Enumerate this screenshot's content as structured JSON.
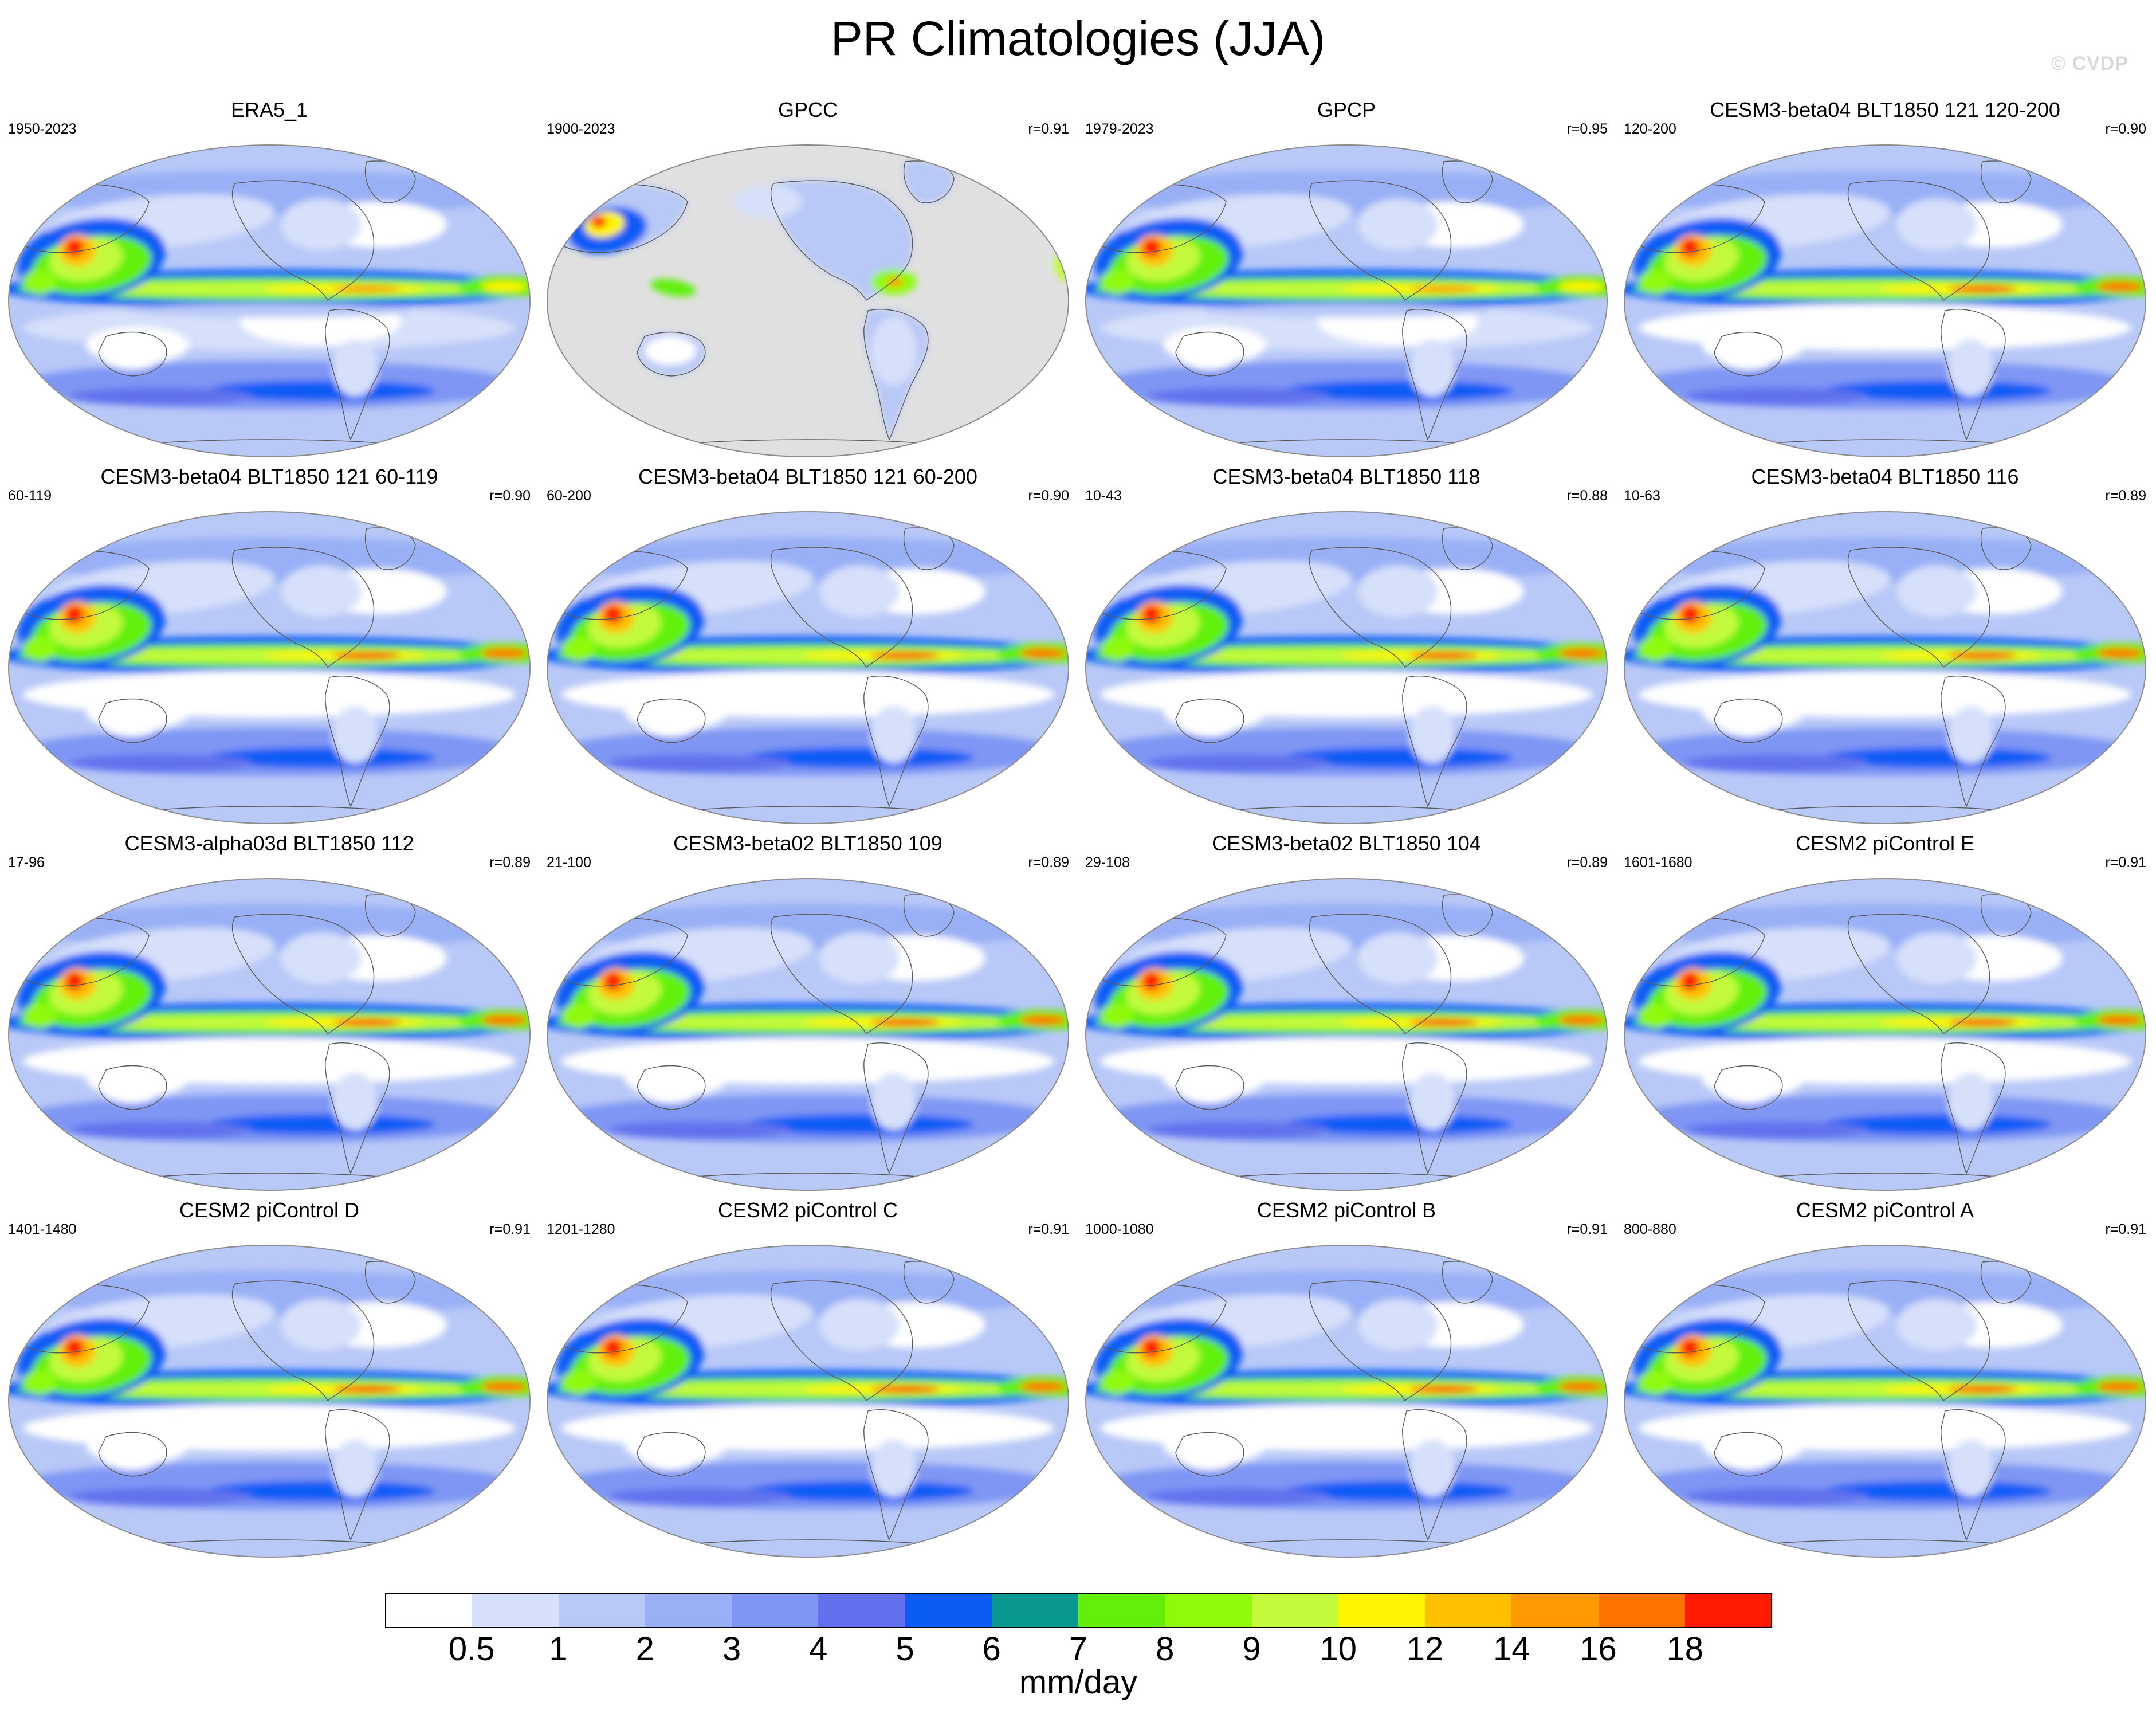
{
  "figure": {
    "title": "PR Climatologies (JJA)",
    "watermark": "© CVDP"
  },
  "panels": [
    {
      "title": "ERA5_1",
      "years": "1950-2023",
      "corr": "",
      "variant": "obs"
    },
    {
      "title": "GPCC",
      "years": "1900-2023",
      "corr": "r=0.91",
      "variant": "land"
    },
    {
      "title": "GPCP",
      "years": "1979-2023",
      "corr": "r=0.95",
      "variant": "obs"
    },
    {
      "title": "CESM3-beta04 BLT1850 121 120-200",
      "years": "120-200",
      "corr": "r=0.90",
      "variant": "model"
    },
    {
      "title": "CESM3-beta04 BLT1850 121 60-119",
      "years": "60-119",
      "corr": "r=0.90",
      "variant": "model"
    },
    {
      "title": "CESM3-beta04 BLT1850 121 60-200",
      "years": "60-200",
      "corr": "r=0.90",
      "variant": "model"
    },
    {
      "title": "CESM3-beta04 BLT1850 118",
      "years": "10-43",
      "corr": "r=0.88",
      "variant": "model"
    },
    {
      "title": "CESM3-beta04 BLT1850 116",
      "years": "10-63",
      "corr": "r=0.89",
      "variant": "model"
    },
    {
      "title": "CESM3-alpha03d BLT1850 112",
      "years": "17-96",
      "corr": "r=0.89",
      "variant": "model"
    },
    {
      "title": "CESM3-beta02 BLT1850 109",
      "years": "21-100",
      "corr": "r=0.89",
      "variant": "model"
    },
    {
      "title": "CESM3-beta02 BLT1850 104",
      "years": "29-108",
      "corr": "r=0.89",
      "variant": "model"
    },
    {
      "title": "CESM2 piControl E",
      "years": "1601-1680",
      "corr": "r=0.91",
      "variant": "model"
    },
    {
      "title": "CESM2 piControl D",
      "years": "1401-1480",
      "corr": "r=0.91",
      "variant": "model"
    },
    {
      "title": "CESM2 piControl C",
      "years": "1201-1280",
      "corr": "r=0.91",
      "variant": "model"
    },
    {
      "title": "CESM2 piControl B",
      "years": "1000-1080",
      "corr": "r=0.91",
      "variant": "model"
    },
    {
      "title": "CESM2 piControl A",
      "years": "800-880",
      "corr": "r=0.91",
      "variant": "model"
    }
  ],
  "colorbar": {
    "units": "mm/day",
    "colors": [
      "#ffffff",
      "#d6e0fa",
      "#b8c8f7",
      "#9ab0f6",
      "#7f96f4",
      "#6272ee",
      "#0a5cf5",
      "#0a9990",
      "#62f00a",
      "#8ffa0a",
      "#c3fa3c",
      "#fff500",
      "#ffc000",
      "#ff9a00",
      "#ff7400",
      "#ff1a00"
    ],
    "labels": [
      "0.5",
      "1",
      "2",
      "3",
      "4",
      "5",
      "6",
      "7",
      "8",
      "9",
      "10",
      "12",
      "14",
      "16",
      "18"
    ]
  },
  "map_style": {
    "ocean_background": "#7f96f4",
    "land_missing": "#e0e0e0",
    "coastline": "#5a5a5a",
    "frame": "#8c8c8c"
  }
}
